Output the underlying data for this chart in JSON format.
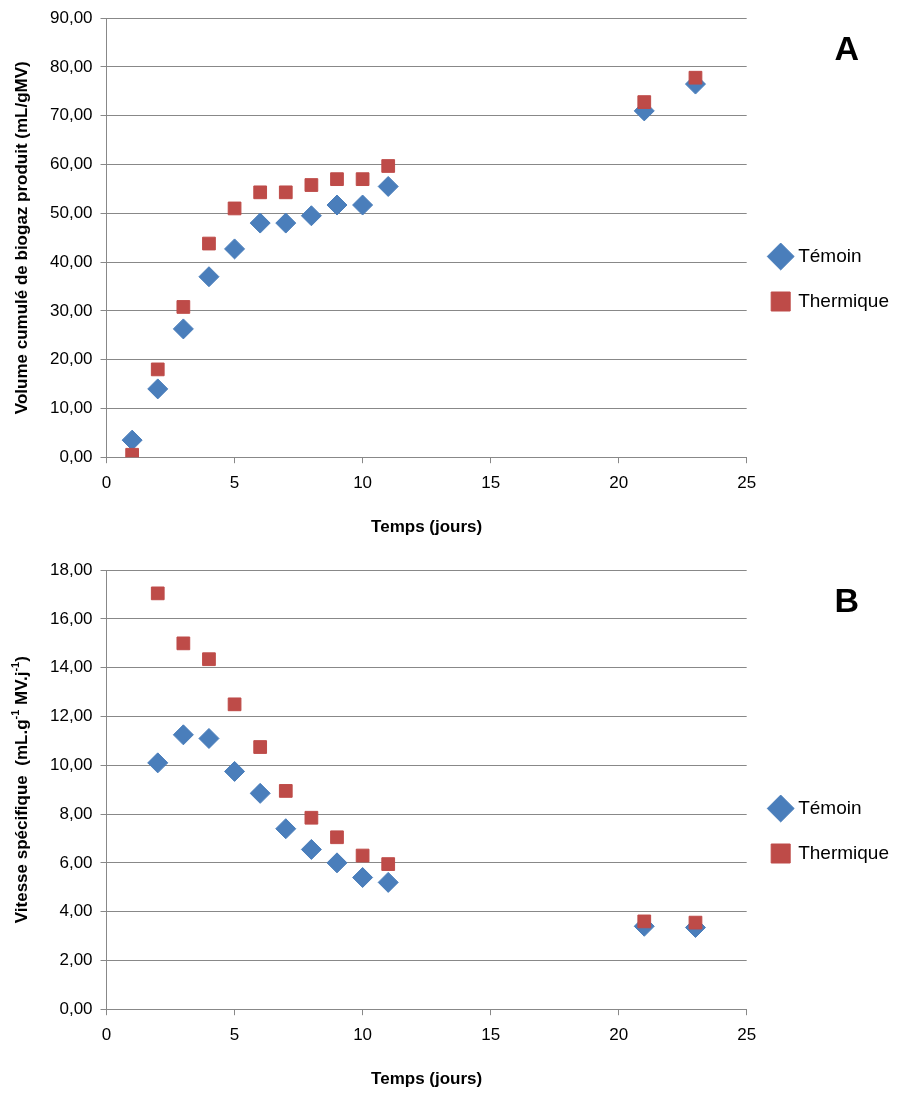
{
  "chart_data": [
    {
      "type": "scatter",
      "annotations": [
        "A"
      ],
      "xlabel": "Temps (jours)",
      "ylabel": "Volume cumulé de biogaz produit (mL/gMV)",
      "x": [
        1,
        2,
        3,
        4,
        5,
        6,
        7,
        8,
        9,
        10,
        11,
        21,
        23
      ],
      "series": [
        {
          "name": "Témoin",
          "color": "#4a7ebb",
          "marker": "diamond",
          "values": [
            3.5,
            14,
            26.3,
            37,
            42.7,
            48,
            48,
            49.5,
            51.7,
            51.7,
            55.5,
            71,
            76.5
          ]
        },
        {
          "name": "Thermique",
          "color": "#be4b48",
          "marker": "square",
          "values": [
            0.5,
            18,
            30.8,
            43.8,
            51,
            54.3,
            54.3,
            55.8,
            57,
            57,
            59.7,
            72.8,
            77.8
          ]
        }
      ],
      "xlim": [
        0,
        25
      ],
      "xticks": [
        0,
        5,
        10,
        15,
        20,
        25
      ],
      "ylim": [
        0,
        90
      ],
      "yticks": [
        {
          "value": 0,
          "label": "0,00"
        },
        {
          "value": 10,
          "label": "10,00"
        },
        {
          "value": 20,
          "label": "20,00"
        },
        {
          "value": 30,
          "label": "30,00"
        },
        {
          "value": 40,
          "label": "40,00"
        },
        {
          "value": 50,
          "label": "50,00"
        },
        {
          "value": 60,
          "label": "60,00"
        },
        {
          "value": 70,
          "label": "70,00"
        },
        {
          "value": 80,
          "label": "80,00"
        },
        {
          "value": 90,
          "label": "90,00"
        }
      ],
      "grid": "y",
      "legend": "right"
    },
    {
      "type": "scatter",
      "annotations": [
        "B"
      ],
      "xlabel": "Temps (jours)",
      "ylabel": "Vitesse spécifique  (mL.g$^{-1}$ MV.j$^{-1}$)",
      "x": [
        2,
        3,
        4,
        5,
        6,
        7,
        8,
        9,
        10,
        11,
        21,
        23
      ],
      "series": [
        {
          "name": "Témoin",
          "color": "#4a7ebb",
          "marker": "diamond",
          "values": [
            10.1,
            11.25,
            11.1,
            9.75,
            8.85,
            7.4,
            6.55,
            6.0,
            5.4,
            5.2,
            3.4,
            3.35
          ]
        },
        {
          "name": "Thermique",
          "color": "#be4b48",
          "marker": "square",
          "values": [
            17.05,
            15.0,
            14.35,
            12.5,
            10.75,
            8.95,
            7.85,
            7.05,
            6.3,
            5.95,
            3.6,
            3.55
          ]
        }
      ],
      "xlim": [
        0,
        25
      ],
      "xticks": [
        0,
        5,
        10,
        15,
        20,
        25
      ],
      "ylim": [
        0,
        18
      ],
      "yticks": [
        {
          "value": 0,
          "label": "0,00"
        },
        {
          "value": 2,
          "label": "2,00"
        },
        {
          "value": 4,
          "label": "4,00"
        },
        {
          "value": 6,
          "label": "6,00"
        },
        {
          "value": 8,
          "label": "8,00"
        },
        {
          "value": 10,
          "label": "10,00"
        },
        {
          "value": 12,
          "label": "12,00"
        },
        {
          "value": 14,
          "label": "14,00"
        },
        {
          "value": 16,
          "label": "16,00"
        },
        {
          "value": 18,
          "label": "18,00"
        }
      ],
      "grid": "y",
      "legend": "right"
    }
  ]
}
